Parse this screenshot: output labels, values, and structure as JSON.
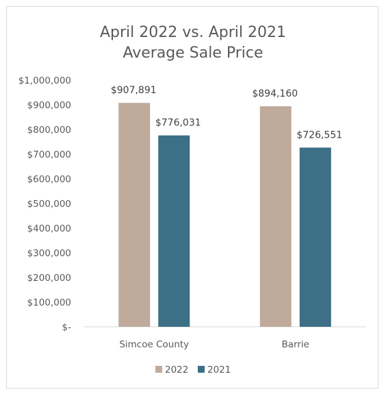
{
  "chart_data": {
    "type": "bar",
    "title": [
      "April 2022 vs. April 2021",
      "Average Sale Price"
    ],
    "categories": [
      "Simcoe County",
      "Barrie"
    ],
    "series": [
      {
        "name": "2022",
        "color": "#bfaa9c",
        "values": [
          907891,
          894160
        ],
        "labels": [
          "$907,891",
          "$894,160"
        ]
      },
      {
        "name": "2021",
        "color": "#3d6f87",
        "values": [
          776031,
          726551
        ],
        "labels": [
          "$776,031",
          "$726,551"
        ]
      }
    ],
    "ylim": [
      0,
      1000000
    ],
    "yticks": [
      0,
      100000,
      200000,
      300000,
      400000,
      500000,
      600000,
      700000,
      800000,
      900000,
      1000000
    ],
    "ytick_labels": [
      "$-",
      "$100,000",
      "$200,000",
      "$300,000",
      "$400,000",
      "$500,000",
      "$600,000",
      "$700,000",
      "$800,000",
      "$900,000",
      "$1,000,000"
    ],
    "grid": false,
    "legend_position": "bottom",
    "axis_color": "#d9d9d9"
  }
}
